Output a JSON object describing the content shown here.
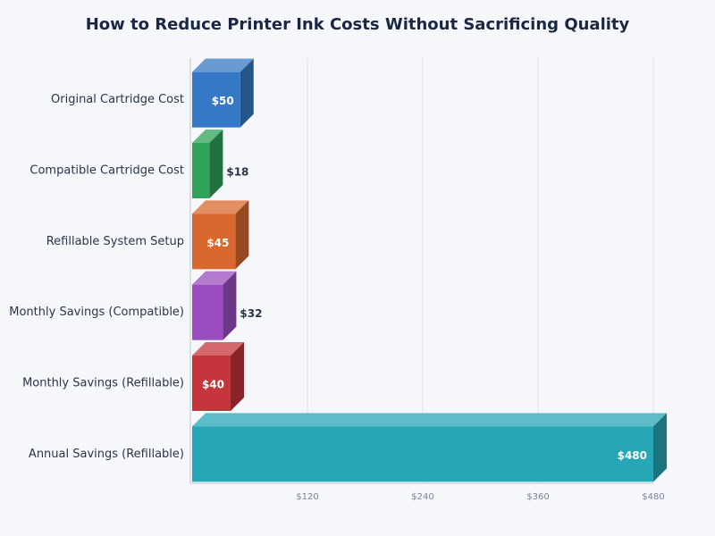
{
  "chart_data": {
    "type": "bar3d",
    "orientation": "horizontal",
    "title": "How to Reduce Printer Ink Costs Without Sacrificing Quality",
    "categories": [
      "Original Cartridge Cost",
      "Compatible Cartridge Cost",
      "Refillable System Setup",
      "Monthly Savings (Compatible)",
      "Monthly Savings (Refillable)",
      "Annual Savings (Refillable)"
    ],
    "values": [
      50,
      18,
      45,
      32,
      40,
      480
    ],
    "value_labels": [
      "$50",
      "$18",
      "$45",
      "$32",
      "$40",
      "$480"
    ],
    "colors": [
      "#3579c6",
      "#2fa35a",
      "#d8682e",
      "#9b4dbf",
      "#c4353c",
      "#27a6b5"
    ],
    "xlim": [
      0,
      480
    ],
    "xticks": [
      {
        "value": 120,
        "label": "$120"
      },
      {
        "value": 240,
        "label": "$240"
      },
      {
        "value": 360,
        "label": "$360"
      },
      {
        "value": 480,
        "label": "$480"
      }
    ],
    "grid": true
  }
}
